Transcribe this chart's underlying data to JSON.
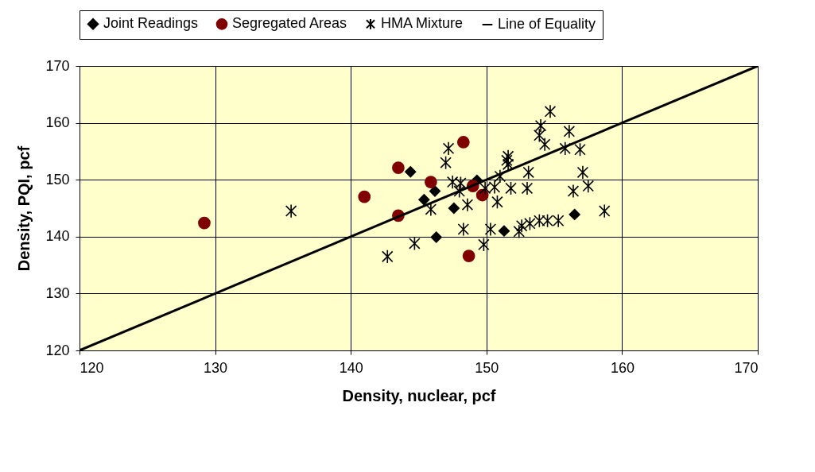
{
  "chart_data": {
    "type": "scatter",
    "xlabel": "Density, nuclear,  pcf",
    "ylabel": "Density, PQI, pcf",
    "xlim": [
      120,
      170
    ],
    "ylim": [
      120,
      170
    ],
    "xticks": [
      120,
      130,
      140,
      150,
      160,
      170
    ],
    "yticks": [
      120,
      130,
      140,
      150,
      160,
      170
    ],
    "grid": true,
    "legend": "top",
    "series": [
      {
        "name": "Joint Readings",
        "color": "#000000",
        "marker": "diamond",
        "x": [
          144.4,
          146.2,
          145.4,
          147.6,
          146.3,
          149.3,
          151.3,
          156.5
        ],
        "values": [
          151.4,
          148.0,
          146.5,
          145.0,
          139.9,
          149.9,
          141.0,
          143.9
        ]
      },
      {
        "name": "Segregated Areas",
        "color": "#800000",
        "marker": "circle",
        "x": [
          129.2,
          141.0,
          143.5,
          143.5,
          145.9,
          148.3,
          148.7,
          149.0,
          149.7
        ],
        "values": [
          142.4,
          147.0,
          152.1,
          143.7,
          149.6,
          156.6,
          136.6,
          148.9,
          147.3
        ]
      },
      {
        "name": "HMA Mixture",
        "color": "#000000",
        "marker": "cross",
        "x": [
          135.6,
          142.7,
          144.7,
          145.9,
          147.0,
          147.2,
          147.5,
          148.1,
          148.0,
          148.6,
          148.3,
          150.3,
          149.8,
          149.9,
          150.8,
          150.6,
          151.6,
          151.6,
          151.8,
          151.0,
          153.1,
          153.0,
          152.4,
          152.6,
          153.2,
          153.9,
          154.5,
          155.3,
          156.4,
          157.1,
          157.5,
          158.7,
          154.0,
          153.9,
          154.3,
          156.1,
          155.8,
          156.9,
          154.7,
          151.5
        ],
        "values": [
          144.5,
          136.5,
          138.8,
          144.8,
          153.0,
          155.5,
          149.6,
          149.4,
          148.0,
          145.6,
          141.3,
          141.3,
          138.6,
          148.5,
          146.1,
          148.7,
          154.1,
          152.7,
          148.5,
          150.6,
          151.3,
          148.5,
          140.9,
          141.9,
          142.3,
          142.8,
          142.8,
          142.8,
          148.0,
          151.3,
          148.9,
          144.5,
          159.5,
          157.8,
          156.2,
          158.5,
          155.5,
          155.3,
          162.0,
          153.4
        ]
      },
      {
        "name": "Line of Equality",
        "type": "line",
        "color": "#000000",
        "marker": "none",
        "x": [
          120,
          170
        ],
        "values": [
          120,
          170
        ]
      }
    ]
  }
}
